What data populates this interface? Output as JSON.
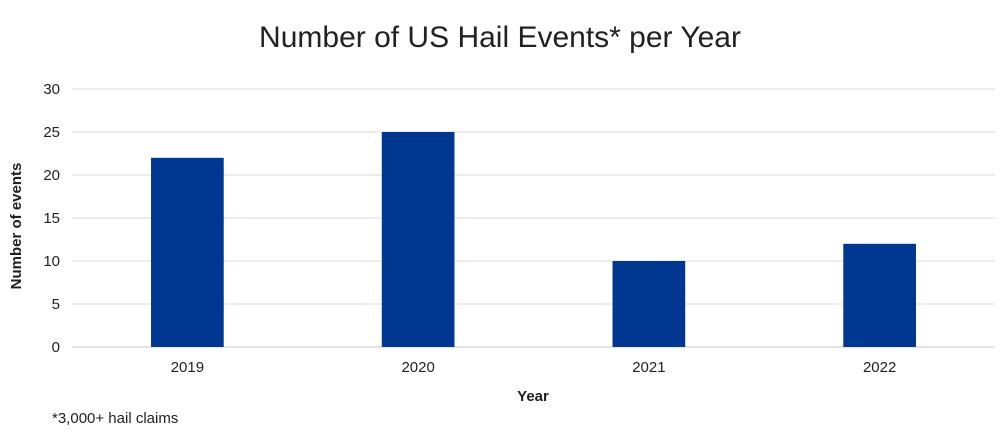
{
  "chart_data": {
    "type": "bar",
    "title": "Number of US Hail Events* per Year",
    "xlabel": "Year",
    "ylabel": "Number of events",
    "categories": [
      "2019",
      "2020",
      "2021",
      "2022"
    ],
    "values": [
      22,
      25,
      10,
      12
    ],
    "ylim": [
      0,
      30
    ],
    "yticks": [
      0,
      5,
      10,
      15,
      20,
      25,
      30
    ],
    "grid": true,
    "legend": "none",
    "bar_color": "#003791"
  },
  "footnote": "*3,000+ hail claims"
}
